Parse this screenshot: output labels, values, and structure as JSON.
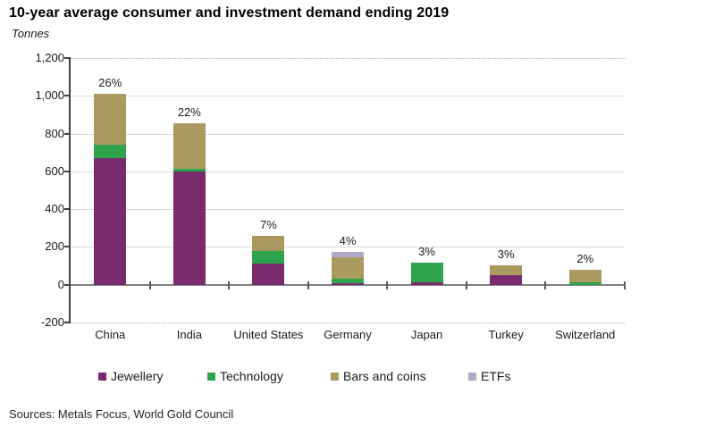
{
  "title": "10-year average consumer and investment demand ending 2019",
  "unit_label": "Tonnes",
  "source": "Sources: Metals Focus, World Gold Council",
  "chart_data": {
    "type": "bar",
    "subtype": "stacked-column",
    "title": "10-year average consumer and investment demand ending 2019",
    "ylabel": "Tonnes",
    "categories": [
      "China",
      "India",
      "United States",
      "Germany",
      "Japan",
      "Turkey",
      "Switzerland"
    ],
    "series": [
      {
        "name": "Jewellery",
        "color": "#7A2B6E",
        "values": [
          670,
          600,
          110,
          10,
          15,
          50,
          0
        ]
      },
      {
        "name": "Technology",
        "color": "#2EA44E",
        "values": [
          70,
          15,
          70,
          20,
          100,
          0,
          15
        ]
      },
      {
        "name": "Bars and coins",
        "color": "#AB9A60",
        "values": [
          270,
          240,
          80,
          115,
          0,
          55,
          65
        ]
      },
      {
        "name": "ETFs",
        "color": "#B2A8C6",
        "values": [
          0,
          0,
          0,
          30,
          0,
          0,
          0
        ]
      }
    ],
    "totals": [
      1010,
      855,
      260,
      175,
      115,
      105,
      80
    ],
    "bar_labels": [
      "26%",
      "22%",
      "7%",
      "4%",
      "3%",
      "3%",
      "2%"
    ],
    "ylim": [
      -200,
      1200
    ],
    "ytick_step": 200,
    "ytick_labels": [
      "1,200",
      "1,000",
      "800",
      "600",
      "400",
      "200",
      "0",
      "-200"
    ],
    "grid": "horizontal",
    "legend_position": "bottom"
  }
}
